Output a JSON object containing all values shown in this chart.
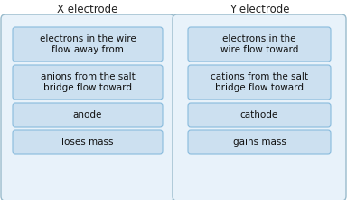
{
  "title_left": "X electrode",
  "title_right": "Y electrode",
  "left_items": [
    "electrons in the wire\nflow away from",
    "anions from the salt\nbridge flow toward",
    "anode",
    "loses mass"
  ],
  "right_items": [
    "electrons in the\nwire flow toward",
    "cations from the salt\nbridge flow toward",
    "cathode",
    "gains mass"
  ],
  "box_bg": "#cce0f0",
  "box_border": "#88bbdd",
  "outer_box_bg": "#e8f2fa",
  "outer_box_border": "#99bbcc",
  "title_color": "#222222",
  "text_color": "#111111",
  "background": "#ffffff",
  "title_fontsize": 8.5,
  "item_fontsize": 7.5
}
